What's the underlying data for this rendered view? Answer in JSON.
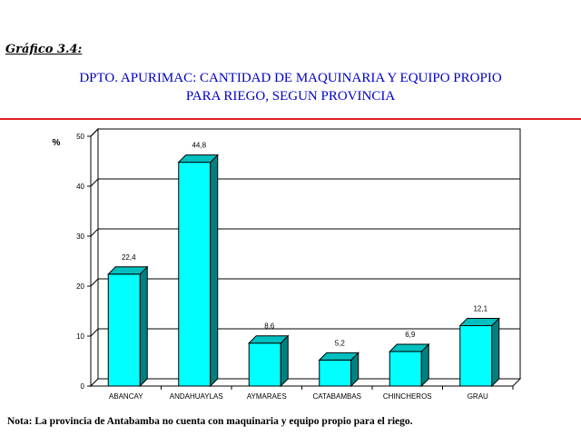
{
  "figure_label": "Gráfico 3.4:",
  "title_line1": "DPTO. APURIMAC: CANTIDAD DE MAQUINARIA Y EQUIPO PROPIO",
  "title_line2": "PARA RIEGO, SEGUN PROVINCIA",
  "note": "Nota: La provincia de Antabamba no cuenta con maquinaria y equipo propio para el riego.",
  "colors": {
    "bar_front": "#00ffff",
    "bar_side": "#008080",
    "bar_top": "#00bfbf",
    "title": "#0000cc",
    "rule": "#e02020"
  },
  "chart_data": {
    "type": "bar",
    "categories": [
      "ABANCAY",
      "ANDAHUAYLAS",
      "AYMARAES",
      "CATABAMBAS",
      "CHINCHEROS",
      "GRAU"
    ],
    "values": [
      22.4,
      44.8,
      8.6,
      5.2,
      6.9,
      12.1
    ],
    "value_labels": [
      "22,4",
      "44,8",
      "8,6",
      "5,2",
      "6,9",
      "12,1"
    ],
    "ylabel": "%",
    "ylim": [
      0,
      50
    ],
    "yticks": [
      0,
      10,
      20,
      30,
      40,
      50
    ],
    "grid": true
  }
}
